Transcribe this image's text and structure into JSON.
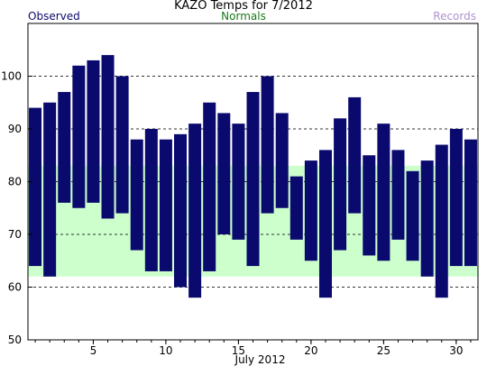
{
  "chart_data": {
    "type": "bar",
    "title": "KAZO Temps for  7/2012",
    "xlabel": "July 2012",
    "ylabel": "",
    "legend": [
      {
        "label": "Observed",
        "color": "#0a0a6e",
        "position": "top-left"
      },
      {
        "label": "Normals",
        "color": "#1a7a1a",
        "position": "top-center"
      },
      {
        "label": "Records",
        "color": "#b090d0",
        "position": "top-right"
      }
    ],
    "ylim": [
      50,
      110
    ],
    "yticks": [
      50,
      60,
      70,
      80,
      90,
      100
    ],
    "xticks": [
      5,
      10,
      15,
      20,
      25,
      30
    ],
    "days": [
      1,
      2,
      3,
      4,
      5,
      6,
      7,
      8,
      9,
      10,
      11,
      12,
      13,
      14,
      15,
      16,
      17,
      18,
      19,
      20,
      21,
      22,
      23,
      24,
      25,
      26,
      27,
      28,
      29,
      30,
      31
    ],
    "series": [
      {
        "name": "Observed",
        "color": "#0a0a6e",
        "high": [
          94,
          95,
          97,
          102,
          103,
          104,
          100,
          88,
          90,
          88,
          89,
          91,
          95,
          93,
          91,
          97,
          100,
          93,
          81,
          84,
          86,
          92,
          96,
          85,
          91,
          86,
          82,
          84,
          87,
          90,
          88
        ],
        "low": [
          64,
          62,
          76,
          75,
          76,
          73,
          74,
          67,
          63,
          63,
          60,
          58,
          63,
          70,
          69,
          64,
          74,
          75,
          69,
          65,
          58,
          67,
          74,
          66,
          65,
          69,
          65,
          62,
          58,
          64,
          64
        ]
      },
      {
        "name": "Normals",
        "color": "#ccffcc",
        "high": [
          83,
          83,
          83,
          83,
          83,
          83,
          83,
          83,
          83,
          83,
          83,
          83,
          83,
          83,
          83,
          83,
          83,
          83,
          83,
          83,
          83,
          83,
          83,
          83,
          83,
          83,
          83,
          83,
          83,
          83,
          83
        ],
        "low": [
          62,
          62,
          62,
          62,
          62,
          62,
          62,
          62,
          62,
          62,
          62,
          62,
          62,
          62,
          62,
          62,
          62,
          62,
          62,
          62,
          62,
          62,
          62,
          62,
          62,
          62,
          62,
          62,
          62,
          62,
          62
        ]
      }
    ],
    "grid": "horizontal-dashed"
  }
}
